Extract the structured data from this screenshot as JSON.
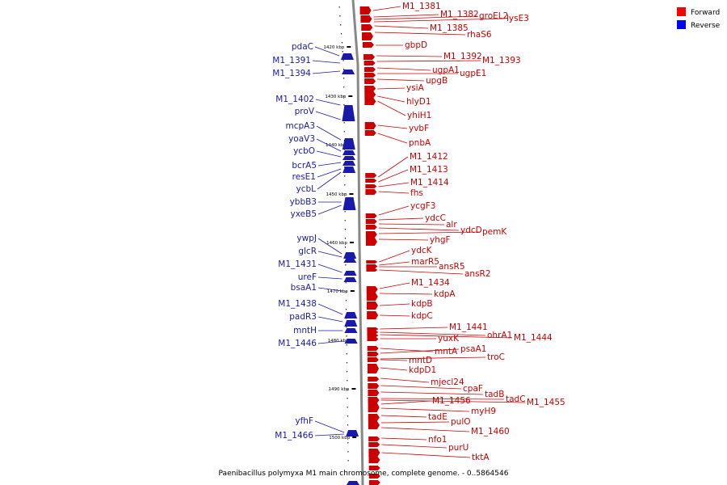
{
  "caption": "Paenibacillus polymyxa M1 main chromosome, complete genome. - 0..5864546",
  "legend": [
    {
      "label": "Forward",
      "color": "#ff0000"
    },
    {
      "label": "Reverse",
      "color": "#0000ff"
    }
  ],
  "colors": {
    "forward": "#cc0000",
    "reverse": "#1a1aaa",
    "backbone": "#888888"
  },
  "ticks": [
    "1420 kbp",
    "1430 kbp",
    "1440 kbp",
    "1450 kbp",
    "1460 kbp",
    "1470 kbp",
    "1480 kbp",
    "1490 kbp",
    "1500 kbp"
  ],
  "reverse_genes": [
    "pdaC",
    "M1_1391",
    "M1_1394",
    "M1_1402",
    "proV",
    "mcpA3",
    "yoaV3",
    "ycbO",
    "bcrA5",
    "resE1",
    "ycbL",
    "ybbB3",
    "yxeB5",
    "ywpJ",
    "glcR",
    "M1_1431",
    "ureF",
    "bsaA1",
    "M1_1438",
    "padR3",
    "mntH",
    "M1_1446",
    "yfhF",
    "M1_1466"
  ],
  "forward_genes": [
    "M1_1381",
    "M1_1382",
    "groEL2",
    "lysE3",
    "M1_1385",
    "rhaS6",
    "gbpD",
    "M1_1392",
    "M1_1393",
    "ugpA1",
    "ugpE1",
    "upgB",
    "ysiA",
    "hlyD1",
    "yhiH1",
    "yvbF",
    "pnbA",
    "M1_1412",
    "M1_1413",
    "M1_1414",
    "fhs",
    "ycgF3",
    "ydcC",
    "alr",
    "ydcD",
    "pemK",
    "yhgF",
    "ydcK",
    "marR5",
    "ansR5",
    "ansR2",
    "M1_1434",
    "kdpA",
    "kdpB",
    "kdpC",
    "M1_1441",
    "ohrA1",
    "M1_1444",
    "yuxK",
    "mntA",
    "psaA1",
    "troC",
    "mntD",
    "kdpD1",
    "mjecl24",
    "cpaF",
    "tadB",
    "tadC",
    "M1_1455",
    "M1_1456",
    "myH9",
    "tadE",
    "pulO",
    "M1_1460",
    "nfo1",
    "purU",
    "tktA"
  ]
}
